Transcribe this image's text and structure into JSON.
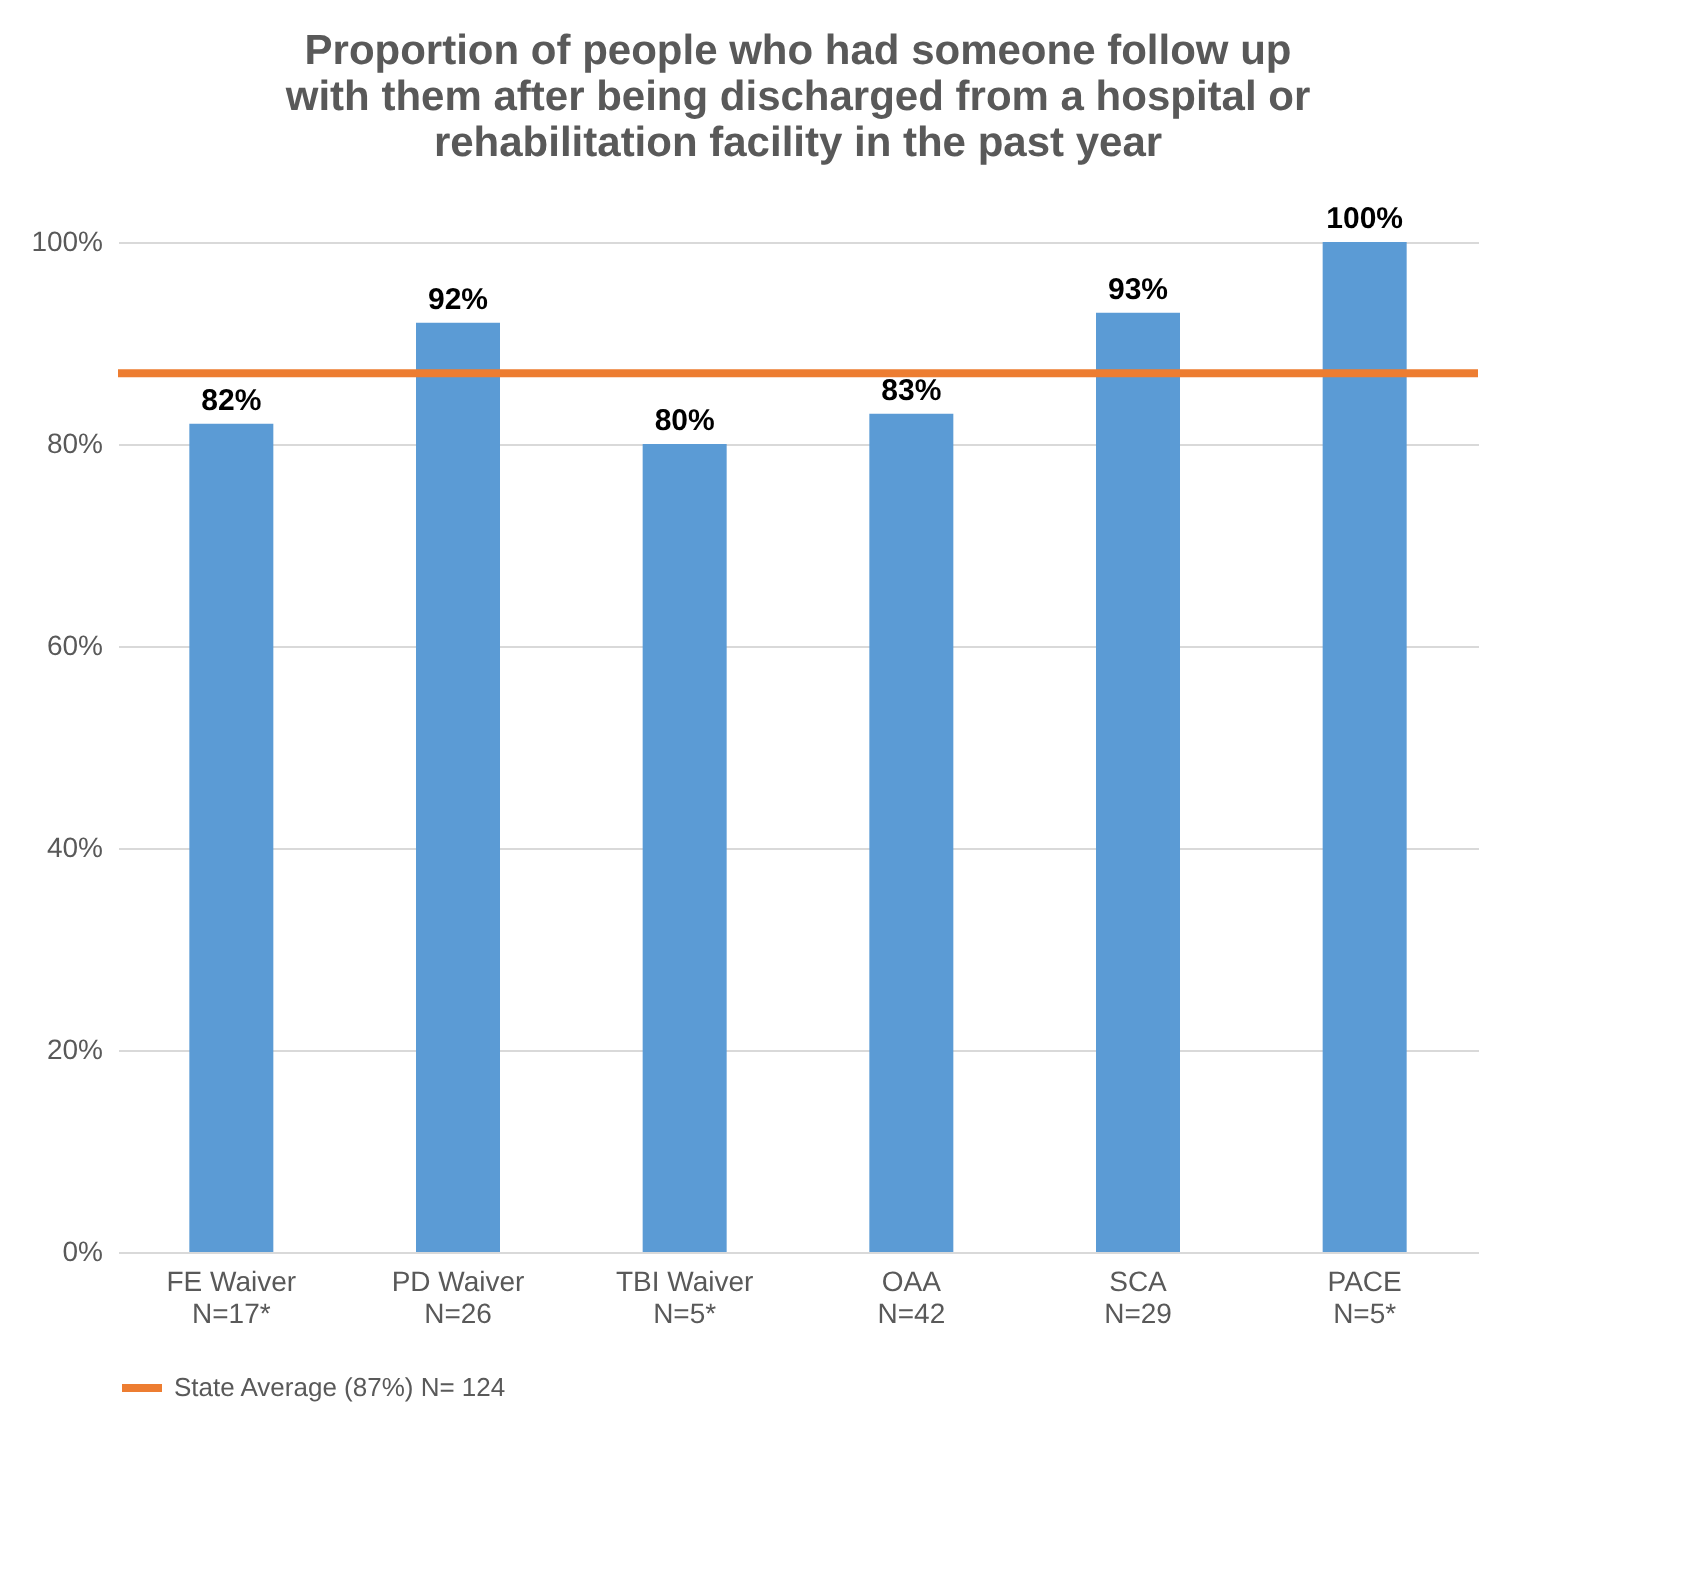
{
  "chart_data": {
    "type": "bar",
    "title": "Proportion of people who had someone follow up\nwith them after being discharged from a hospital or\nrehabilitation facility in the past year",
    "categories": [
      "FE Waiver\nN=17*",
      "PD Waiver\nN=26",
      "TBI Waiver\nN=5*",
      "OAA\nN=42",
      "SCA\nN=29",
      "PACE\nN=5*"
    ],
    "values": [
      82,
      92,
      80,
      83,
      93,
      100
    ],
    "value_labels": [
      "82%",
      "92%",
      "80%",
      "83%",
      "93%",
      "100%"
    ],
    "color": "#5b9bd5",
    "ylim": [
      0,
      100
    ],
    "yticks": [
      {
        "value": 0,
        "label": "0%"
      },
      {
        "value": 20,
        "label": "20%"
      },
      {
        "value": 40,
        "label": "40%"
      },
      {
        "value": 60,
        "label": "60%"
      },
      {
        "value": 80,
        "label": "80%"
      },
      {
        "value": 100,
        "label": "100%"
      }
    ],
    "ref_lines": [
      {
        "axis": "y",
        "value": 87,
        "label": "State Average (87%) N= 124",
        "color": "#ed7d31"
      }
    ],
    "grid": "y",
    "legend": "bottom"
  }
}
